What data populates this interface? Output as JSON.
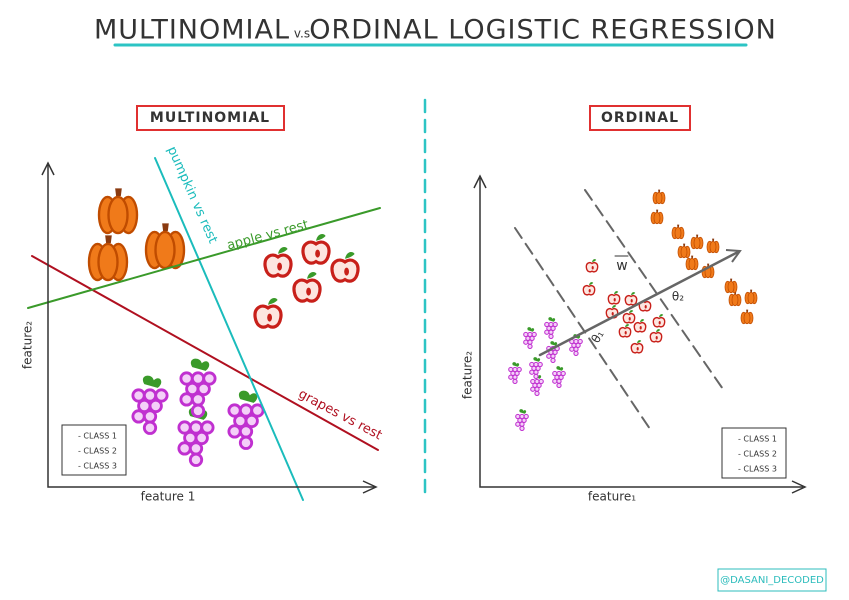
{
  "title": {
    "left": "MULTINOMIAL",
    "vs": "v.s",
    "right": "ORDINAL LOGISTIC REGRESSION"
  },
  "panels": [
    {
      "label": "MULTINOMIAL",
      "x_axis": "feature 1",
      "y_axis": "feature₂",
      "lines": [
        "apple vs rest",
        "pumpkin vs rest",
        "grapes vs rest"
      ],
      "legend": [
        "- CLASS 1",
        "- CLASS 2",
        "- CLASS 3"
      ]
    },
    {
      "label": "ORDINAL",
      "x_axis": "feature₁",
      "y_axis": "feature₂",
      "vector": "w",
      "thresholds": [
        "θ₁",
        "θ₂"
      ],
      "legend": [
        "- CLASS 1",
        "- CLASS 2",
        "- CLASS 3"
      ]
    }
  ],
  "credit": "@DASANI_DECODED"
}
